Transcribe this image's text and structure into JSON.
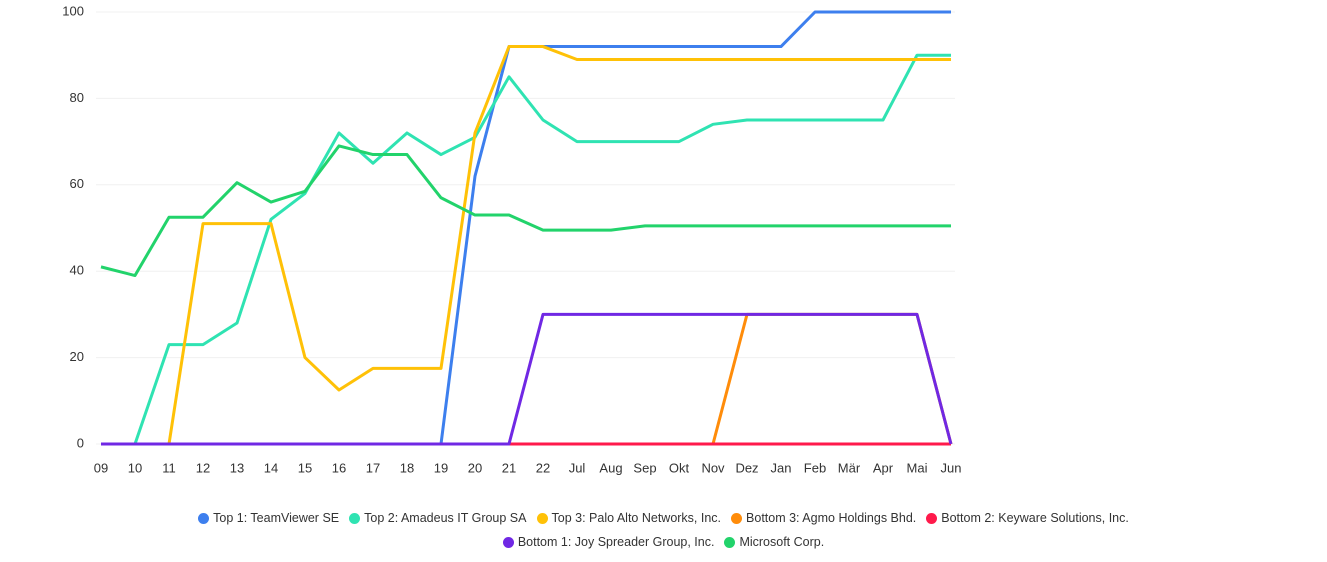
{
  "chart_data": {
    "type": "line",
    "categories": [
      "09",
      "10",
      "11",
      "12",
      "13",
      "14",
      "15",
      "16",
      "17",
      "18",
      "19",
      "20",
      "21",
      "22",
      "Jul",
      "Aug",
      "Sep",
      "Okt",
      "Nov",
      "Dez",
      "Jan",
      "Feb",
      "Mär",
      "Apr",
      "Mai",
      "Jun"
    ],
    "ylim": [
      0,
      100
    ],
    "yticks": [
      0,
      20,
      40,
      60,
      80,
      100
    ],
    "grid": true,
    "legend": "bottom",
    "series": [
      {
        "name": "Top 1: TeamViewer SE",
        "color": "#3d7fee",
        "values": [
          0,
          0,
          0,
          0,
          0,
          0,
          0,
          0,
          0,
          0,
          0,
          62,
          92,
          92,
          92,
          92,
          92,
          92,
          92,
          92,
          92,
          100,
          100,
          100,
          100,
          100
        ]
      },
      {
        "name": "Top 2: Amadeus IT Group SA",
        "color": "#2fe3b2",
        "values": [
          0,
          0,
          23,
          23,
          28,
          52,
          58,
          72,
          65,
          72,
          67,
          71,
          85,
          75,
          70,
          70,
          70,
          70,
          74,
          75,
          75,
          75,
          75,
          75,
          90,
          90
        ]
      },
      {
        "name": "Top 3: Palo Alto Networks, Inc.",
        "color": "#ffc107",
        "values": [
          0,
          0,
          0,
          51,
          51,
          51,
          20,
          12.5,
          17.5,
          17.5,
          17.5,
          72,
          92,
          92,
          89,
          89,
          89,
          89,
          89,
          89,
          89,
          89,
          89,
          89,
          89,
          89
        ]
      },
      {
        "name": "Bottom 3: Agmo Holdings Bhd.",
        "color": "#ff8c0a",
        "values": [
          0,
          0,
          0,
          0,
          0,
          0,
          0,
          0,
          0,
          0,
          0,
          0,
          0,
          0,
          0,
          0,
          0,
          0,
          0,
          30,
          30,
          30,
          30,
          30,
          30,
          0
        ]
      },
      {
        "name": "Bottom 2: Keyware Solutions, Inc.",
        "color": "#ff1a4b",
        "values": [
          0,
          0,
          0,
          0,
          0,
          0,
          0,
          0,
          0,
          0,
          0,
          0,
          0,
          0,
          0,
          0,
          0,
          0,
          0,
          0,
          0,
          0,
          0,
          0,
          0,
          0
        ]
      },
      {
        "name": "Bottom 1: Joy Spreader Group, Inc.",
        "color": "#7028e4",
        "values": [
          0,
          0,
          0,
          0,
          0,
          0,
          0,
          0,
          0,
          0,
          0,
          0,
          0,
          30,
          30,
          30,
          30,
          30,
          30,
          30,
          30,
          30,
          30,
          30,
          30,
          0
        ]
      },
      {
        "name": "Microsoft Corp.",
        "color": "#22d36b",
        "values": [
          41,
          39,
          52.5,
          52.5,
          60.5,
          56,
          58.5,
          69,
          67,
          67,
          57,
          53,
          53,
          49.5,
          49.5,
          49.5,
          50.5,
          50.5,
          50.5,
          50.5,
          50.5,
          50.5,
          50.5,
          50.5,
          50.5,
          50.5
        ]
      }
    ]
  }
}
